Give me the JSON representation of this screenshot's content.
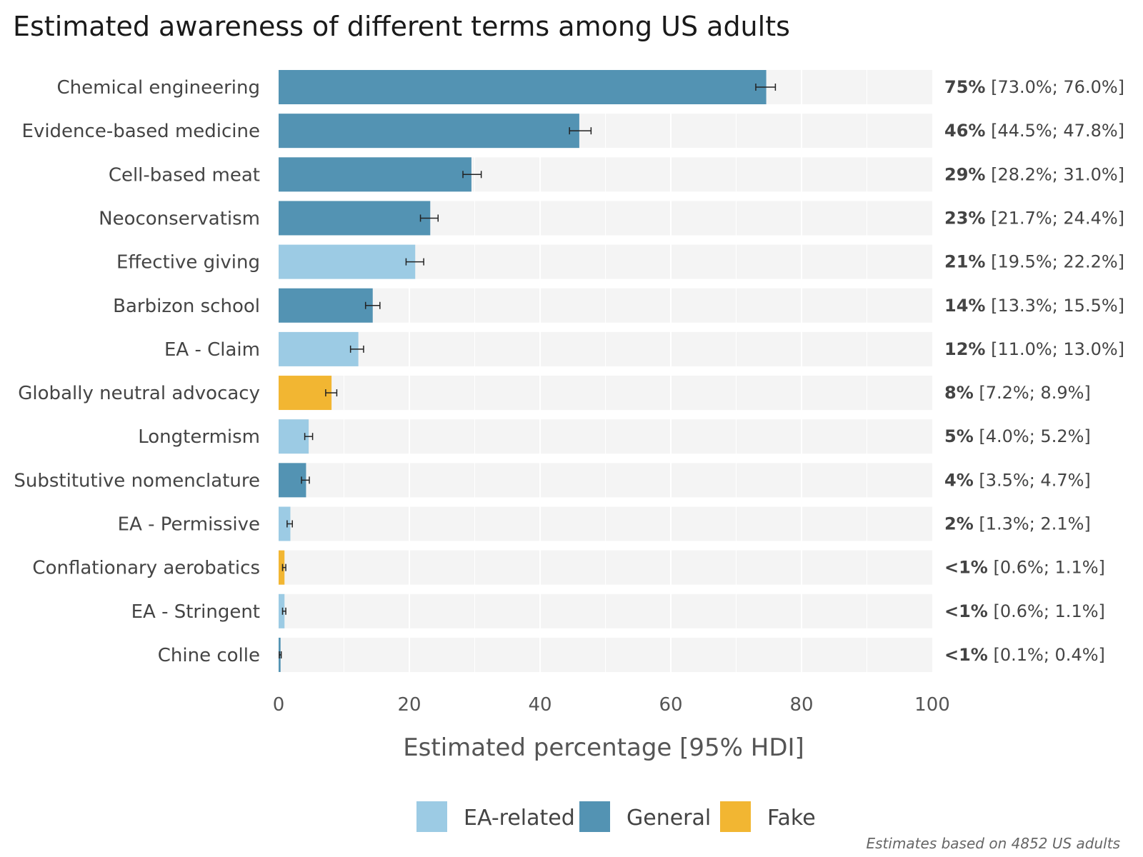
{
  "chart_data": {
    "type": "bar",
    "orientation": "horizontal",
    "title": "Estimated awareness of different terms among US adults",
    "xlabel": "Estimated percentage [95% HDI]",
    "ylabel": "",
    "xlim": [
      0,
      100
    ],
    "xticks": [
      "0",
      "20",
      "40",
      "60",
      "80",
      "100"
    ],
    "grid": true,
    "legend_position": "bottom",
    "caption": "Estimates based on 4852 US adults",
    "colors": {
      "EA-related": "#9ccbe4",
      "General": "#5393b3",
      "Fake": "#f2b632",
      "track": "#f4f4f4",
      "error": "#222222"
    },
    "legend": [
      "EA-related",
      "General",
      "Fake"
    ],
    "categories": [
      "Chemical engineering",
      "Evidence-based medicine",
      "Cell-based meat",
      "Neoconservatism",
      "Effective giving",
      "Barbizon school",
      "EA - Claim",
      "Globally neutral advocacy",
      "Longtermism",
      "Substitutive nomenclature",
      "EA - Permissive",
      "Conflationary aerobatics",
      "EA - Stringent",
      "Chine colle"
    ],
    "groups": [
      "General",
      "General",
      "General",
      "General",
      "EA-related",
      "General",
      "EA-related",
      "Fake",
      "EA-related",
      "General",
      "EA-related",
      "Fake",
      "EA-related",
      "General"
    ],
    "values": [
      74.6,
      46.0,
      29.5,
      23.2,
      20.9,
      14.4,
      12.2,
      8.1,
      4.6,
      4.2,
      1.8,
      0.9,
      0.9,
      0.3
    ],
    "lower": [
      73.0,
      44.5,
      28.2,
      21.7,
      19.5,
      13.3,
      11.0,
      7.2,
      4.0,
      3.5,
      1.3,
      0.6,
      0.6,
      0.1
    ],
    "upper": [
      76.0,
      47.8,
      31.0,
      24.4,
      22.2,
      15.5,
      13.0,
      8.9,
      5.2,
      4.7,
      2.1,
      1.1,
      1.1,
      0.4
    ],
    "value_labels": [
      "75%",
      "46%",
      "29%",
      "23%",
      "21%",
      "14%",
      "12%",
      "8%",
      "5%",
      "4%",
      "2%",
      "<1%",
      "<1%",
      "<1%"
    ],
    "interval_labels": [
      "[73.0%; 76.0%]",
      "[44.5%; 47.8%]",
      "[28.2%; 31.0%]",
      "[21.7%; 24.4%]",
      "[19.5%; 22.2%]",
      "[13.3%; 15.5%]",
      "[11.0%; 13.0%]",
      "[7.2%; 8.9%]",
      "[4.0%; 5.2%]",
      "[3.5%; 4.7%]",
      "[1.3%; 2.1%]",
      "[0.6%; 1.1%]",
      "[0.6%; 1.1%]",
      "[0.1%; 0.4%]"
    ]
  }
}
